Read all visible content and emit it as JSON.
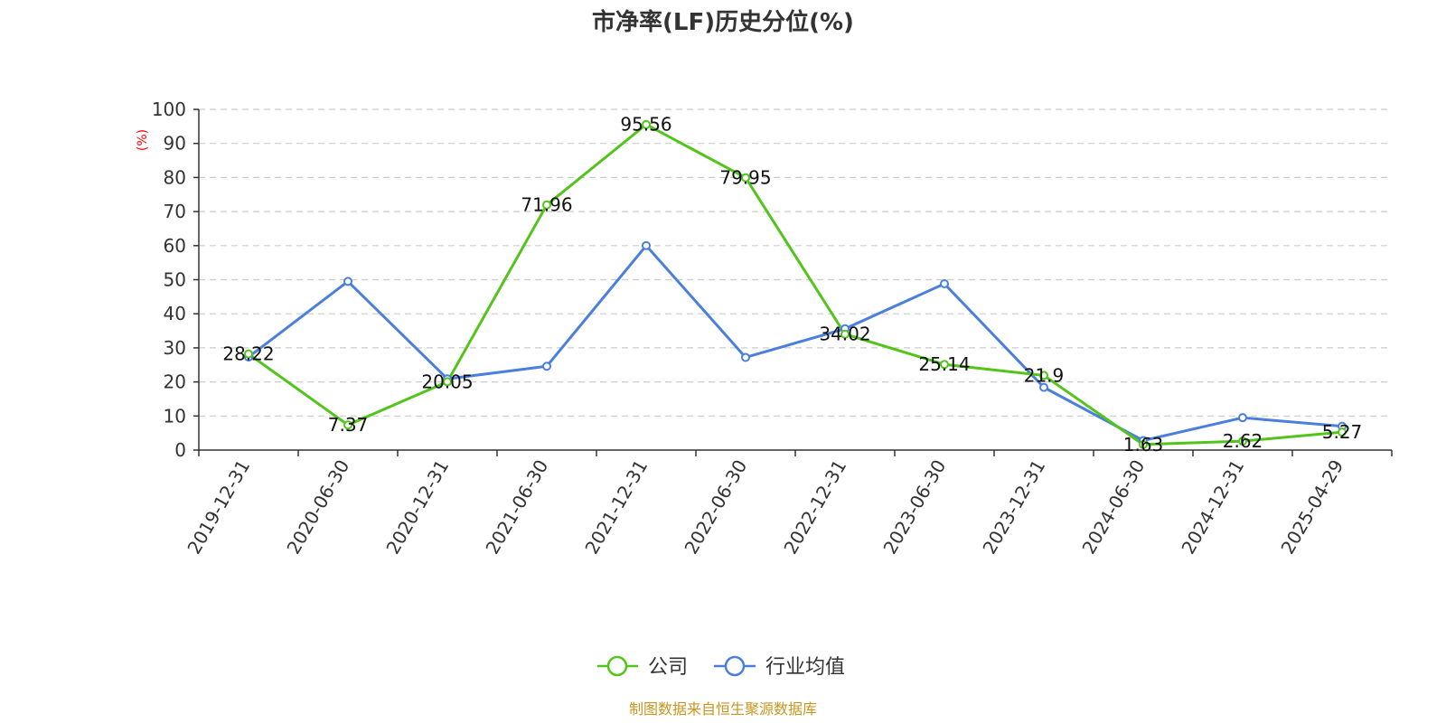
{
  "chart_data": {
    "type": "line",
    "title": "市净率(LF)历史分位(%)",
    "ylabel": "(%)",
    "ylim": [
      0,
      100
    ],
    "yticks": [
      0,
      10,
      20,
      30,
      40,
      50,
      60,
      70,
      80,
      90,
      100
    ],
    "grid": true,
    "legend_position": "bottom",
    "categories": [
      "2019-12-31",
      "2020-06-30",
      "2020-12-31",
      "2021-06-30",
      "2021-12-31",
      "2022-06-30",
      "2022-12-31",
      "2023-06-30",
      "2023-12-31",
      "2024-06-30",
      "2024-12-31",
      "2025-04-29"
    ],
    "series": [
      {
        "name": "公司",
        "color": "#52c41a",
        "values": [
          28.22,
          7.37,
          20.05,
          71.96,
          95.56,
          79.95,
          34.02,
          25.14,
          21.9,
          1.63,
          2.62,
          5.27
        ],
        "labels": [
          "28.22",
          "7.37",
          "20.05",
          "71.96",
          "95.56",
          "79.95",
          "34.02",
          "25.14",
          "21.9",
          "1.63",
          "2.62",
          "5.27"
        ]
      },
      {
        "name": "行业均值",
        "color": "#4a7fde",
        "values": [
          27.3,
          49.5,
          20.9,
          24.6,
          60.0,
          27.2,
          35.6,
          48.8,
          18.4,
          2.8,
          9.5,
          7.0
        ]
      }
    ]
  },
  "footer": {
    "source": "制图数据来自恒生聚源数据库"
  }
}
